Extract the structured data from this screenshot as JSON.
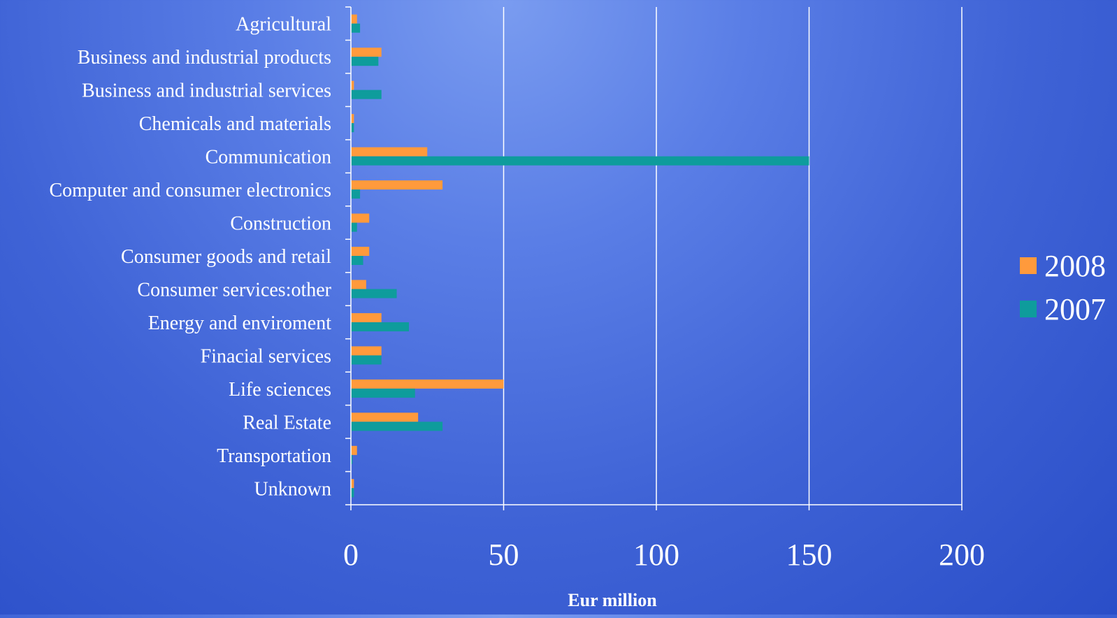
{
  "chart_data": {
    "type": "bar",
    "orientation": "horizontal",
    "title": "",
    "xlabel": "Eur million",
    "ylabel": "",
    "xlim": [
      0,
      200
    ],
    "xticks": [
      0,
      50,
      100,
      150,
      200
    ],
    "grid": true,
    "legend_position": "right",
    "categories": [
      "Agricultural",
      "Business and industrial products",
      "Business and industrial services",
      "Chemicals and materials",
      "Communication",
      "Computer and consumer electronics",
      "Construction",
      "Consumer goods and retail",
      "Consumer services:other",
      "Energy and enviroment",
      "Finacial services",
      "Life sciences",
      "Real Estate",
      "Transportation",
      "Unknown"
    ],
    "series": [
      {
        "name": "2008",
        "color": "#ff9a3c",
        "values": [
          2,
          10,
          1,
          1,
          25,
          30,
          6,
          6,
          5,
          10,
          10,
          50,
          22,
          2,
          1
        ]
      },
      {
        "name": "2007",
        "color": "#0e9c9c",
        "values": [
          3,
          9,
          10,
          1,
          150,
          3,
          2,
          4,
          15,
          19,
          10,
          21,
          30,
          0.5,
          1
        ]
      }
    ]
  }
}
